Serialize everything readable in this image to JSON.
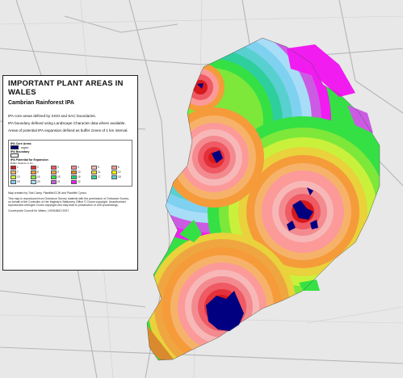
{
  "map": {
    "colors": {
      "background": "#e8e8e8",
      "roads": "#b5b5b5",
      "core": "#000080",
      "buffer_ramp": [
        "#d7191c",
        "#e4303a",
        "#ef5a64",
        "#f38a8f",
        "#f8b7b7",
        "#fb9a99",
        "#f7b26a",
        "#f59b3a",
        "#f0a640",
        "#d98a2e",
        "#e9d23c",
        "#ffff00",
        "#c9f13c",
        "#7de83a",
        "#35e044",
        "#1fd46c",
        "#2ecf9c",
        "#58d0cf",
        "#7fd1f0",
        "#a8ddf8",
        "#cc5be4",
        "#f01cf0"
      ]
    }
  },
  "legend": {
    "title": "IMPORTANT PLANT AREAS IN WALES",
    "subtitle": "Cambrian Rainforest IPA",
    "note1": "IPA core areas defined by SSSI and SAC boundaries.",
    "note2": "IPA boundary defined using Landscape Character data where available.",
    "note3": "Areas of potential IPA expansion defined as buffer zones of 1 km interval.",
    "core_heading": "IPA Core Areas",
    "core_item": "region",
    "boundary_heading": "IPA Boundary",
    "expansion_heading": "IPA Potential for Expansion",
    "expansion_sub": "Buffer distance in km",
    "ramp_labels": [
      "1",
      "2",
      "3",
      "4",
      "5",
      "6",
      "7",
      "8",
      "9",
      "10",
      "11",
      "12",
      "13",
      "14",
      "15",
      "16",
      "17",
      "18",
      "19",
      "20",
      "21",
      "22"
    ],
    "credit1": "Map created by Tobi Carey, Plantlife/CCW and Plantlife Cymru.",
    "credit2": "This map is reproduced from Ordnance Survey material with the permission of Ordnance Survey on behalf of the Controller of Her Majesty's Stationery Office © Crown copyright. Unauthorised reproduction infringes Crown copyright and may lead to prosecution or civil proceedings.",
    "credit3": "Countryside Council for Wales, 100018813 2007."
  }
}
